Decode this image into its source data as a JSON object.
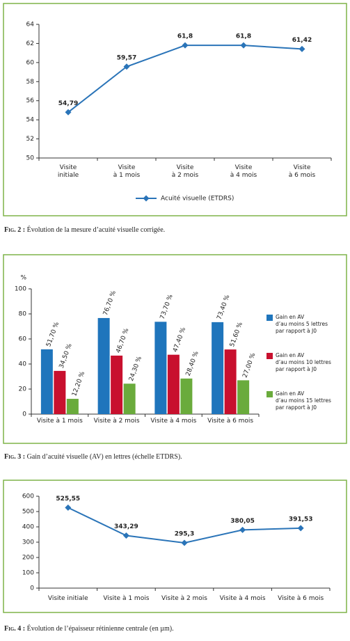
{
  "chart_data": [
    {
      "type": "line",
      "caption_label": "Fig. 2 :",
      "caption": "Évolution de la mesure d’acuité visuelle corrigée.",
      "categories": [
        "Visite\ninitiale",
        "Visite\nà 1 mois",
        "Visite\nà 2 mois",
        "Visite\nà 4 mois",
        "Visite\nà 6 mois"
      ],
      "series": [
        {
          "name": "Acuité visuelle (ETDRS)",
          "color": "#2a74b8",
          "values": [
            54.79,
            59.57,
            61.8,
            61.8,
            61.42
          ],
          "value_labels": [
            "54,79",
            "59,57",
            "61,8",
            "61,8",
            "61,42"
          ]
        }
      ],
      "ylim": [
        50,
        64
      ],
      "yticks": [
        50,
        52,
        54,
        56,
        58,
        60,
        62,
        64
      ],
      "grid": false,
      "legend": "bottom"
    },
    {
      "type": "bar",
      "caption_label": "Fig. 3 :",
      "caption": "Gain d’acuité visuelle (AV) en lettres (échelle ETDRS).",
      "y_label": "%",
      "categories": [
        "Visite à 1 mois",
        "Visite à 2 mois",
        "Visite à 4 mois",
        "Visite à 6 mois"
      ],
      "series": [
        {
          "name": "Gain en AV\nd’au moins 5 lettres\npar rapport à J0",
          "color": "#1f75bc",
          "values": [
            51.7,
            76.7,
            73.7,
            73.4
          ],
          "value_labels": [
            "51,70 %",
            "76,70 %",
            "73,70 %",
            "73,40 %"
          ]
        },
        {
          "name": "Gain en AV\nd’au moins 10 lettres\npar rapport à J0",
          "color": "#c8102e",
          "values": [
            34.5,
            46.7,
            47.4,
            51.6
          ],
          "value_labels": [
            "34,50 %",
            "46,70 %",
            "47,40 %",
            "51,60 %"
          ]
        },
        {
          "name": "Gain en AV\nd’au moins 15 lettres\npar rapport à J0",
          "color": "#6aab3c",
          "values": [
            12.2,
            24.3,
            28.4,
            27.0
          ],
          "value_labels": [
            "12,20 %",
            "24,30 %",
            "28,40 %",
            "27,00 %"
          ]
        }
      ],
      "ylim": [
        0,
        100
      ],
      "yticks": [
        0,
        20,
        40,
        60,
        80,
        100
      ],
      "grid": false,
      "legend": "right"
    },
    {
      "type": "line",
      "caption_label": "Fig. 4 :",
      "caption": "Évolution de l’épaisseur rétinienne centrale (en µm).",
      "categories": [
        "Visite initiale",
        "Visite à 1 mois",
        "Visite à 2 mois",
        "Visite à 4 mois",
        "Visite à 6 mois"
      ],
      "color": "#2a74b8",
      "values": [
        525.55,
        343.29,
        295.3,
        380.05,
        391.53
      ],
      "value_labels": [
        "525,55",
        "343,29",
        "295,3",
        "380,05",
        "391,53"
      ],
      "ylim": [
        0,
        600
      ],
      "yticks": [
        0,
        100,
        200,
        300,
        400,
        500,
        600
      ],
      "grid": false
    }
  ]
}
